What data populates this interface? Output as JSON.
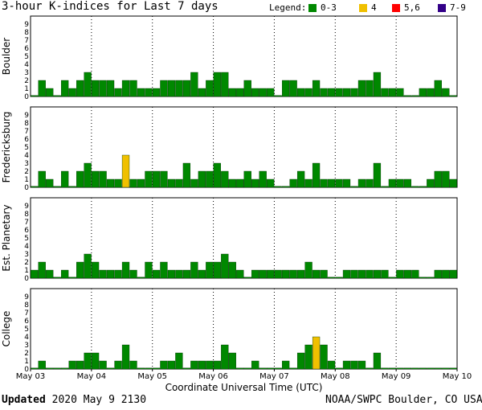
{
  "header": {
    "title": "3-hour K-indices for Last 7 days",
    "legend_title": "Legend:",
    "legend": [
      {
        "label": "0-3",
        "color": "#008800"
      },
      {
        "label": "4",
        "color": "#f0c000"
      },
      {
        "label": "5,6",
        "color": "#ff0000"
      },
      {
        "label": "7-9",
        "color": "#330088"
      }
    ]
  },
  "footer": {
    "updated_label": "Updated",
    "updated_value": "2020 May  9 2130",
    "source": "NOAA/SWPC Boulder, CO USA"
  },
  "chart_data": {
    "type": "bar",
    "title": "3-hour K-indices for Last 7 days",
    "xlabel": "Coordinate Universal Time (UTC)",
    "x_ticks": [
      "May 03",
      "May 04",
      "May 05",
      "May 06",
      "May 07",
      "May 08",
      "May 09",
      "May 10"
    ],
    "ylim": [
      0,
      9
    ],
    "y_ticks": [
      0,
      1,
      2,
      3,
      4,
      5,
      6,
      7,
      8,
      9
    ],
    "intervals_per_day": 8,
    "series": [
      {
        "name": "Boulder",
        "values": [
          0,
          2,
          1,
          0,
          2,
          1,
          2,
          3,
          2,
          2,
          2,
          1,
          2,
          2,
          1,
          1,
          1,
          2,
          2,
          2,
          2,
          3,
          1,
          2,
          3,
          3,
          1,
          1,
          2,
          1,
          1,
          1,
          0,
          2,
          2,
          1,
          1,
          2,
          1,
          1,
          1,
          1,
          1,
          2,
          2,
          3,
          1,
          1,
          1,
          0,
          0,
          1,
          1,
          2,
          1,
          0
        ]
      },
      {
        "name": "Fredericksburg",
        "values": [
          0,
          2,
          1,
          0,
          2,
          0,
          2,
          3,
          2,
          2,
          1,
          1,
          4,
          1,
          1,
          2,
          2,
          2,
          1,
          1,
          3,
          1,
          2,
          2,
          3,
          2,
          1,
          1,
          2,
          1,
          2,
          1,
          0,
          0,
          1,
          2,
          1,
          3,
          1,
          1,
          1,
          1,
          0,
          1,
          1,
          3,
          0,
          1,
          1,
          1,
          0,
          0,
          1,
          2,
          2,
          1
        ]
      },
      {
        "name": "Est. Planetary",
        "values": [
          1,
          2,
          1,
          0,
          1,
          0,
          2,
          3,
          2,
          1,
          1,
          1,
          2,
          1,
          0,
          2,
          1,
          2,
          1,
          1,
          1,
          2,
          1,
          2,
          2,
          3,
          2,
          1,
          0,
          1,
          1,
          1,
          1,
          1,
          1,
          1,
          2,
          1,
          1,
          0,
          0,
          1,
          1,
          1,
          1,
          1,
          1,
          0,
          1,
          1,
          1,
          0,
          0,
          1,
          1,
          1
        ]
      },
      {
        "name": "College",
        "values": [
          0,
          1,
          0,
          0,
          0,
          1,
          1,
          2,
          2,
          1,
          0,
          1,
          3,
          1,
          0,
          0,
          0,
          1,
          1,
          2,
          0,
          1,
          1,
          1,
          1,
          3,
          2,
          0,
          0,
          1,
          0,
          0,
          0,
          1,
          0,
          2,
          3,
          4,
          3,
          1,
          0,
          1,
          1,
          1,
          0,
          2,
          0,
          0,
          0,
          0,
          0,
          0,
          0,
          0,
          0,
          0
        ]
      }
    ]
  }
}
